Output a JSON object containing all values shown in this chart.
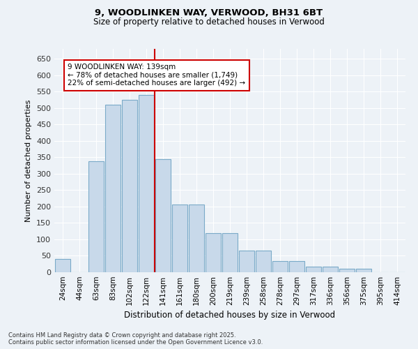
{
  "title1": "9, WOODLINKEN WAY, VERWOOD, BH31 6BT",
  "title2": "Size of property relative to detached houses in Verwood",
  "xlabel": "Distribution of detached houses by size in Verwood",
  "ylabel": "Number of detached properties",
  "bin_labels": [
    "24sqm",
    "44sqm",
    "63sqm",
    "83sqm",
    "102sqm",
    "122sqm",
    "141sqm",
    "161sqm",
    "180sqm",
    "200sqm",
    "219sqm",
    "239sqm",
    "258sqm",
    "278sqm",
    "297sqm",
    "317sqm",
    "336sqm",
    "356sqm",
    "375sqm",
    "395sqm",
    "414sqm"
  ],
  "bar_values": [
    40,
    0,
    338,
    510,
    525,
    540,
    345,
    207,
    207,
    119,
    119,
    66,
    66,
    33,
    33,
    16,
    16,
    10,
    10,
    0,
    0
  ],
  "bar_color": "#c8d9ea",
  "bar_edge_color": "#7aaac8",
  "vline_color": "#cc0000",
  "annotation_text": "9 WOODLINKEN WAY: 139sqm\n← 78% of detached houses are smaller (1,749)\n22% of semi-detached houses are larger (492) →",
  "annotation_box_color": "#ffffff",
  "annotation_box_edge": "#cc0000",
  "ylim": [
    0,
    680
  ],
  "yticks": [
    0,
    50,
    100,
    150,
    200,
    250,
    300,
    350,
    400,
    450,
    500,
    550,
    600,
    650
  ],
  "footer": "Contains HM Land Registry data © Crown copyright and database right 2025.\nContains public sector information licensed under the Open Government Licence v3.0.",
  "bg_color": "#edf2f7",
  "grid_color": "#ffffff"
}
